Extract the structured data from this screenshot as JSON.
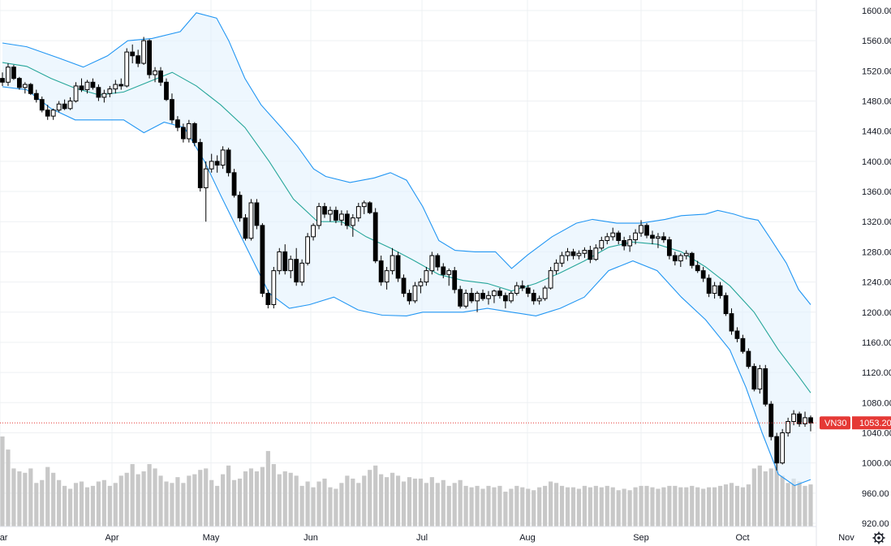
{
  "chart_data": {
    "type": "candlestick",
    "symbol": "VN30",
    "last_price": 1053.2,
    "last_price_label": "1053.20",
    "price_axis": {
      "min": 920,
      "max": 1600,
      "step": 40,
      "labels": [
        "1600.00",
        "1560.00",
        "1520.00",
        "1480.00",
        "1440.00",
        "1400.00",
        "1360.00",
        "1320.00",
        "1280.00",
        "1240.00",
        "1200.00",
        "1160.00",
        "1120.00",
        "1080.00",
        "1040.00",
        "1000.00",
        "960.00",
        "920.00"
      ]
    },
    "x_axis_labels": [
      "Mar",
      "Apr",
      "May",
      "Jun",
      "Jul",
      "Aug",
      "Sep",
      "Oct",
      "Nov"
    ],
    "indicator": "Bollinger Bands",
    "candles": [
      [
        1510,
        1518,
        1500,
        1505,
        0.62
      ],
      [
        1505,
        1530,
        1500,
        1525,
        0.53
      ],
      [
        1525,
        1528,
        1508,
        1510,
        0.4
      ],
      [
        1510,
        1512,
        1495,
        1498,
        0.38
      ],
      [
        1498,
        1505,
        1490,
        1502,
        0.37
      ],
      [
        1502,
        1504,
        1488,
        1490,
        0.4
      ],
      [
        1490,
        1495,
        1478,
        1482,
        0.3
      ],
      [
        1482,
        1486,
        1465,
        1468,
        0.32
      ],
      [
        1468,
        1475,
        1455,
        1460,
        0.41
      ],
      [
        1460,
        1470,
        1455,
        1468,
        0.37
      ],
      [
        1468,
        1480,
        1465,
        1476,
        0.32
      ],
      [
        1476,
        1482,
        1468,
        1470,
        0.28
      ],
      [
        1470,
        1485,
        1468,
        1480,
        0.26
      ],
      [
        1480,
        1505,
        1478,
        1500,
        0.3
      ],
      [
        1500,
        1510,
        1492,
        1495,
        0.31
      ],
      [
        1495,
        1508,
        1490,
        1505,
        0.27
      ],
      [
        1505,
        1510,
        1495,
        1498,
        0.28
      ],
      [
        1498,
        1502,
        1480,
        1485,
        0.31
      ],
      [
        1485,
        1495,
        1478,
        1490,
        0.32
      ],
      [
        1490,
        1500,
        1485,
        1496,
        0.28
      ],
      [
        1496,
        1508,
        1490,
        1502,
        0.3
      ],
      [
        1502,
        1510,
        1495,
        1500,
        0.35
      ],
      [
        1500,
        1550,
        1498,
        1545,
        0.37
      ],
      [
        1545,
        1555,
        1530,
        1540,
        0.43
      ],
      [
        1540,
        1548,
        1525,
        1530,
        0.36
      ],
      [
        1530,
        1565,
        1528,
        1560,
        0.38
      ],
      [
        1560,
        1562,
        1510,
        1515,
        0.43
      ],
      [
        1515,
        1525,
        1505,
        1520,
        0.4
      ],
      [
        1520,
        1525,
        1500,
        1505,
        0.35
      ],
      [
        1505,
        1510,
        1480,
        1482,
        0.31
      ],
      [
        1482,
        1490,
        1450,
        1455,
        0.3
      ],
      [
        1455,
        1460,
        1440,
        1445,
        0.34
      ],
      [
        1445,
        1450,
        1425,
        1430,
        0.3
      ],
      [
        1430,
        1455,
        1425,
        1450,
        0.35
      ],
      [
        1450,
        1452,
        1420,
        1425,
        0.36
      ],
      [
        1425,
        1430,
        1360,
        1365,
        0.39
      ],
      [
        1365,
        1400,
        1320,
        1390,
        0.4
      ],
      [
        1390,
        1410,
        1385,
        1400,
        0.32
      ],
      [
        1400,
        1408,
        1385,
        1395,
        0.28
      ],
      [
        1395,
        1420,
        1390,
        1415,
        0.36
      ],
      [
        1415,
        1418,
        1380,
        1385,
        0.42
      ],
      [
        1385,
        1390,
        1352,
        1355,
        0.32
      ],
      [
        1355,
        1360,
        1320,
        1325,
        0.33
      ],
      [
        1325,
        1330,
        1295,
        1298,
        0.38
      ],
      [
        1298,
        1350,
        1295,
        1345,
        0.4
      ],
      [
        1345,
        1350,
        1310,
        1315,
        0.38
      ],
      [
        1315,
        1318,
        1220,
        1225,
        0.41
      ],
      [
        1225,
        1230,
        1205,
        1210,
        0.52
      ],
      [
        1210,
        1260,
        1205,
        1255,
        0.43
      ],
      [
        1255,
        1285,
        1250,
        1280,
        0.36
      ],
      [
        1280,
        1290,
        1250,
        1255,
        0.38
      ],
      [
        1255,
        1275,
        1245,
        1270,
        0.37
      ],
      [
        1270,
        1285,
        1235,
        1240,
        0.35
      ],
      [
        1240,
        1270,
        1235,
        1265,
        0.28
      ],
      [
        1265,
        1305,
        1262,
        1300,
        0.31
      ],
      [
        1300,
        1318,
        1295,
        1315,
        0.27
      ],
      [
        1315,
        1345,
        1310,
        1340,
        0.31
      ],
      [
        1340,
        1345,
        1325,
        1330,
        0.33
      ],
      [
        1330,
        1340,
        1320,
        1335,
        0.27
      ],
      [
        1335,
        1340,
        1318,
        1322,
        0.26
      ],
      [
        1322,
        1335,
        1315,
        1330,
        0.3
      ],
      [
        1330,
        1335,
        1310,
        1315,
        0.35
      ],
      [
        1315,
        1330,
        1300,
        1325,
        0.33
      ],
      [
        1325,
        1345,
        1320,
        1340,
        0.3
      ],
      [
        1340,
        1348,
        1330,
        1345,
        0.35
      ],
      [
        1345,
        1347,
        1330,
        1332,
        0.39
      ],
      [
        1332,
        1338,
        1265,
        1268,
        0.42
      ],
      [
        1268,
        1275,
        1235,
        1240,
        0.36
      ],
      [
        1240,
        1260,
        1230,
        1255,
        0.34
      ],
      [
        1255,
        1285,
        1250,
        1275,
        0.37
      ],
      [
        1275,
        1280,
        1240,
        1245,
        0.35
      ],
      [
        1245,
        1250,
        1220,
        1225,
        0.31
      ],
      [
        1225,
        1230,
        1210,
        1215,
        0.34
      ],
      [
        1215,
        1240,
        1212,
        1235,
        0.33
      ],
      [
        1235,
        1245,
        1225,
        1240,
        0.33
      ],
      [
        1240,
        1260,
        1235,
        1255,
        0.3
      ],
      [
        1255,
        1280,
        1250,
        1275,
        0.34
      ],
      [
        1275,
        1278,
        1255,
        1260,
        0.3
      ],
      [
        1260,
        1265,
        1245,
        1250,
        0.32
      ],
      [
        1250,
        1258,
        1235,
        1255,
        0.28
      ],
      [
        1255,
        1260,
        1225,
        1230,
        0.3
      ],
      [
        1230,
        1235,
        1205,
        1208,
        0.32
      ],
      [
        1208,
        1230,
        1205,
        1225,
        0.28
      ],
      [
        1225,
        1232,
        1212,
        1215,
        0.27
      ],
      [
        1215,
        1228,
        1200,
        1225,
        0.28
      ],
      [
        1225,
        1230,
        1215,
        1218,
        0.26
      ],
      [
        1218,
        1228,
        1210,
        1222,
        0.28
      ],
      [
        1222,
        1230,
        1212,
        1228,
        0.27
      ],
      [
        1228,
        1232,
        1218,
        1222,
        0.28
      ],
      [
        1222,
        1226,
        1205,
        1215,
        0.24
      ],
      [
        1215,
        1228,
        1212,
        1225,
        0.26
      ],
      [
        1225,
        1240,
        1222,
        1235,
        0.28
      ],
      [
        1235,
        1242,
        1228,
        1232,
        0.27
      ],
      [
        1232,
        1236,
        1220,
        1225,
        0.26
      ],
      [
        1225,
        1230,
        1210,
        1215,
        0.25
      ],
      [
        1215,
        1222,
        1210,
        1218,
        0.27
      ],
      [
        1218,
        1235,
        1215,
        1232,
        0.28
      ],
      [
        1232,
        1260,
        1230,
        1255,
        0.31
      ],
      [
        1255,
        1270,
        1250,
        1265,
        0.3
      ],
      [
        1265,
        1280,
        1260,
        1275,
        0.28
      ],
      [
        1275,
        1285,
        1268,
        1280,
        0.27
      ],
      [
        1280,
        1284,
        1270,
        1275,
        0.27
      ],
      [
        1275,
        1282,
        1270,
        1278,
        0.26
      ],
      [
        1278,
        1286,
        1272,
        1282,
        0.28
      ],
      [
        1282,
        1288,
        1265,
        1270,
        0.27
      ],
      [
        1270,
        1290,
        1268,
        1285,
        0.28
      ],
      [
        1285,
        1300,
        1282,
        1295,
        0.27
      ],
      [
        1295,
        1305,
        1290,
        1300,
        0.28
      ],
      [
        1300,
        1312,
        1295,
        1305,
        0.27
      ],
      [
        1305,
        1308,
        1290,
        1295,
        0.25
      ],
      [
        1295,
        1300,
        1282,
        1288,
        0.26
      ],
      [
        1288,
        1302,
        1280,
        1296,
        0.25
      ],
      [
        1296,
        1310,
        1290,
        1305,
        0.27
      ],
      [
        1305,
        1322,
        1300,
        1315,
        0.28
      ],
      [
        1315,
        1318,
        1298,
        1302,
        0.28
      ],
      [
        1302,
        1308,
        1290,
        1298,
        0.27
      ],
      [
        1298,
        1305,
        1285,
        1300,
        0.26
      ],
      [
        1300,
        1306,
        1292,
        1296,
        0.27
      ],
      [
        1296,
        1300,
        1270,
        1275,
        0.28
      ],
      [
        1275,
        1280,
        1262,
        1268,
        0.28
      ],
      [
        1268,
        1278,
        1260,
        1275,
        0.27
      ],
      [
        1275,
        1282,
        1270,
        1278,
        0.27
      ],
      [
        1278,
        1280,
        1258,
        1262,
        0.28
      ],
      [
        1262,
        1268,
        1252,
        1255,
        0.27
      ],
      [
        1255,
        1260,
        1240,
        1245,
        0.26
      ],
      [
        1245,
        1250,
        1220,
        1225,
        0.27
      ],
      [
        1225,
        1240,
        1218,
        1235,
        0.27
      ],
      [
        1235,
        1240,
        1218,
        1222,
        0.28
      ],
      [
        1222,
        1226,
        1195,
        1198,
        0.29
      ],
      [
        1198,
        1205,
        1170,
        1175,
        0.3
      ],
      [
        1175,
        1180,
        1160,
        1165,
        0.28
      ],
      [
        1165,
        1170,
        1145,
        1148,
        0.27
      ],
      [
        1148,
        1152,
        1125,
        1128,
        0.29
      ],
      [
        1128,
        1132,
        1095,
        1098,
        0.4
      ],
      [
        1098,
        1130,
        1092,
        1125,
        0.42
      ],
      [
        1125,
        1130,
        1075,
        1078,
        0.38
      ],
      [
        1078,
        1082,
        1030,
        1035,
        0.4
      ],
      [
        1035,
        1040,
        990,
        1000,
        0.46
      ],
      [
        1000,
        1045,
        998,
        1040,
        0.35
      ],
      [
        1040,
        1060,
        1035,
        1055,
        0.3
      ],
      [
        1055,
        1070,
        1050,
        1065,
        0.33
      ],
      [
        1065,
        1068,
        1048,
        1052,
        0.31
      ],
      [
        1052,
        1068,
        1048,
        1060,
        0.28
      ],
      [
        1060,
        1063,
        1042,
        1053,
        0.29
      ]
    ],
    "bollinger": {
      "upper": [
        [
          0,
          1557
        ],
        [
          0.03,
          1552
        ],
        [
          0.07,
          1537
        ],
        [
          0.1,
          1525
        ],
        [
          0.13,
          1540
        ],
        [
          0.155,
          1560
        ],
        [
          0.185,
          1563
        ],
        [
          0.22,
          1572
        ],
        [
          0.24,
          1597
        ],
        [
          0.265,
          1590
        ],
        [
          0.28,
          1560
        ],
        [
          0.3,
          1510
        ],
        [
          0.32,
          1475
        ],
        [
          0.345,
          1445
        ],
        [
          0.365,
          1420
        ],
        [
          0.385,
          1390
        ],
        [
          0.4,
          1380
        ],
        [
          0.43,
          1372
        ],
        [
          0.46,
          1378
        ],
        [
          0.48,
          1385
        ],
        [
          0.5,
          1375
        ],
        [
          0.52,
          1340
        ],
        [
          0.54,
          1295
        ],
        [
          0.56,
          1282
        ],
        [
          0.585,
          1280
        ],
        [
          0.61,
          1280
        ],
        [
          0.63,
          1258
        ],
        [
          0.65,
          1276
        ],
        [
          0.68,
          1300
        ],
        [
          0.71,
          1318
        ],
        [
          0.73,
          1323
        ],
        [
          0.76,
          1318
        ],
        [
          0.79,
          1318
        ],
        [
          0.82,
          1323
        ],
        [
          0.84,
          1328
        ],
        [
          0.87,
          1330
        ],
        [
          0.885,
          1335
        ],
        [
          0.905,
          1330
        ],
        [
          0.92,
          1325
        ],
        [
          0.935,
          1322
        ],
        [
          0.95,
          1298
        ],
        [
          0.97,
          1265
        ],
        [
          0.985,
          1230
        ],
        [
          1.0,
          1210
        ]
      ],
      "middle": [
        [
          0,
          1531
        ],
        [
          0.03,
          1526
        ],
        [
          0.06,
          1510
        ],
        [
          0.09,
          1497
        ],
        [
          0.12,
          1488
        ],
        [
          0.15,
          1492
        ],
        [
          0.18,
          1505
        ],
        [
          0.21,
          1518
        ],
        [
          0.24,
          1500
        ],
        [
          0.27,
          1475
        ],
        [
          0.3,
          1445
        ],
        [
          0.33,
          1400
        ],
        [
          0.36,
          1350
        ],
        [
          0.39,
          1320
        ],
        [
          0.42,
          1320
        ],
        [
          0.45,
          1300
        ],
        [
          0.48,
          1285
        ],
        [
          0.51,
          1268
        ],
        [
          0.54,
          1250
        ],
        [
          0.57,
          1242
        ],
        [
          0.6,
          1238
        ],
        [
          0.63,
          1228
        ],
        [
          0.66,
          1238
        ],
        [
          0.69,
          1252
        ],
        [
          0.72,
          1268
        ],
        [
          0.75,
          1286
        ],
        [
          0.78,
          1293
        ],
        [
          0.81,
          1290
        ],
        [
          0.84,
          1280
        ],
        [
          0.87,
          1260
        ],
        [
          0.9,
          1235
        ],
        [
          0.93,
          1200
        ],
        [
          0.96,
          1150
        ],
        [
          0.985,
          1115
        ],
        [
          1.0,
          1093
        ]
      ],
      "lower": [
        [
          0,
          1499
        ],
        [
          0.03,
          1495
        ],
        [
          0.06,
          1470
        ],
        [
          0.09,
          1455
        ],
        [
          0.12,
          1455
        ],
        [
          0.15,
          1455
        ],
        [
          0.175,
          1438
        ],
        [
          0.2,
          1452
        ],
        [
          0.225,
          1445
        ],
        [
          0.25,
          1400
        ],
        [
          0.27,
          1355
        ],
        [
          0.3,
          1290
        ],
        [
          0.33,
          1225
        ],
        [
          0.355,
          1205
        ],
        [
          0.38,
          1210
        ],
        [
          0.41,
          1220
        ],
        [
          0.44,
          1203
        ],
        [
          0.47,
          1196
        ],
        [
          0.5,
          1195
        ],
        [
          0.52,
          1200
        ],
        [
          0.54,
          1200
        ],
        [
          0.57,
          1200
        ],
        [
          0.6,
          1205
        ],
        [
          0.63,
          1200
        ],
        [
          0.66,
          1195
        ],
        [
          0.69,
          1205
        ],
        [
          0.72,
          1220
        ],
        [
          0.75,
          1255
        ],
        [
          0.78,
          1268
        ],
        [
          0.81,
          1255
        ],
        [
          0.84,
          1220
        ],
        [
          0.87,
          1190
        ],
        [
          0.9,
          1150
        ],
        [
          0.92,
          1100
        ],
        [
          0.94,
          1040
        ],
        [
          0.96,
          985
        ],
        [
          0.98,
          970
        ],
        [
          1.0,
          978
        ]
      ]
    }
  },
  "colors": {
    "up_body": "#ffffff",
    "down_body": "#000000",
    "wick": "#000000",
    "band_line": "#2196f3",
    "middle_line": "#26a69a",
    "band_fill": "#e3f2fd",
    "volume": "#c8c8c8",
    "grid": "#eef0f3",
    "price_tag": "#e53935",
    "price_line": "#e53935"
  },
  "settings_icon": "gear-icon"
}
